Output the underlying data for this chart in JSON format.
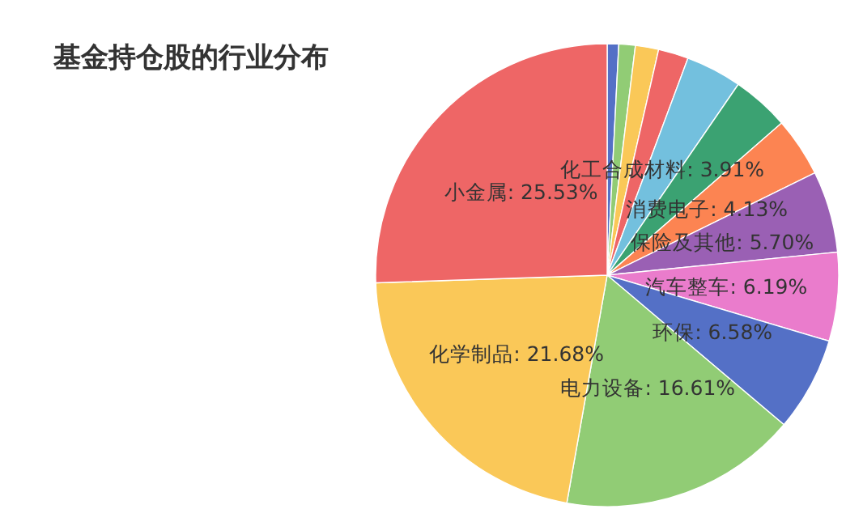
{
  "chart_data": {
    "type": "pie",
    "title": "基金持仓股的行业分布",
    "categories": [
      null,
      null,
      null,
      null,
      "化工合成材料",
      null,
      "消费电子",
      "保险及其他",
      "汽车整车",
      "环保",
      "电力设备",
      "化学制品",
      "小金属"
    ],
    "values": [
      0.8,
      1.15,
      1.62,
      2.1,
      3.91,
      4.0,
      4.13,
      5.7,
      6.19,
      6.58,
      16.61,
      21.68,
      25.53
    ],
    "value_labels": [
      null,
      null,
      null,
      null,
      "3.91%",
      null,
      "4.13%",
      "5.70%",
      "6.19%",
      "6.58%",
      "16.61%",
      "21.68%",
      "25.53%"
    ],
    "colors": [
      "#5470c6",
      "#91cc75",
      "#fac858",
      "#ee6666",
      "#73c0de",
      "#3ba272",
      "#fc8452",
      "#9a60b4",
      "#ea7ccc",
      "#5470c6",
      "#91cc75",
      "#fac858",
      "#ee6666"
    ]
  }
}
